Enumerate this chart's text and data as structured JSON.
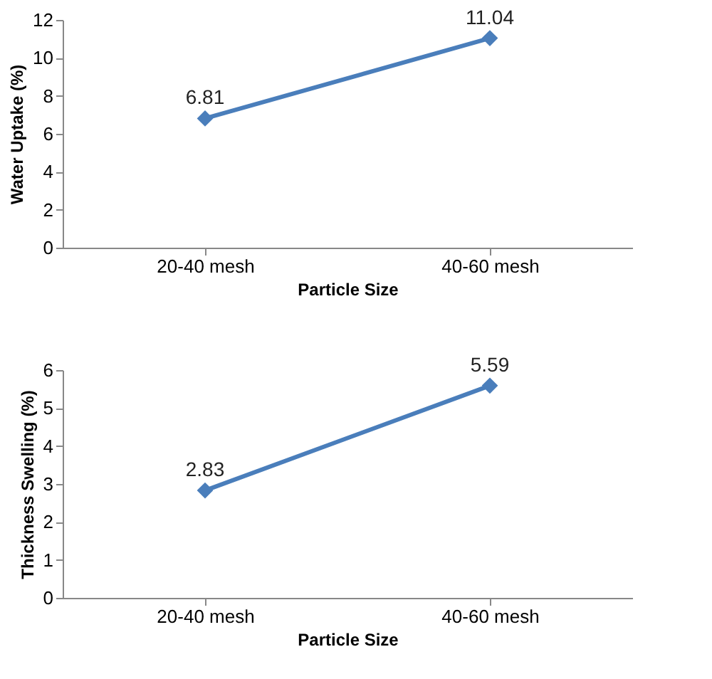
{
  "chart_data": [
    {
      "type": "line",
      "categories": [
        "20-40 mesh",
        "40-60 mesh"
      ],
      "series": [
        {
          "color": "#4a7ebb",
          "values": [
            6.81,
            11.04
          ]
        }
      ],
      "xlabel": "Particle Size",
      "ylabel": "Water Uptake (%)",
      "ylim": [
        0,
        12
      ],
      "yticks": [
        0,
        2,
        4,
        6,
        8,
        10,
        12
      ],
      "data_labels": true,
      "marker": "diamond",
      "grid": false,
      "legend": false
    },
    {
      "type": "line",
      "categories": [
        "20-40 mesh",
        "40-60 mesh"
      ],
      "series": [
        {
          "color": "#4a7ebb",
          "values": [
            2.83,
            5.59
          ]
        }
      ],
      "xlabel": "Particle Size",
      "ylabel": "Thickness Swelling (%)",
      "ylim": [
        0,
        6
      ],
      "yticks": [
        0,
        1,
        2,
        3,
        4,
        5,
        6
      ],
      "data_labels": true,
      "marker": "diamond",
      "grid": false,
      "legend": false
    }
  ]
}
